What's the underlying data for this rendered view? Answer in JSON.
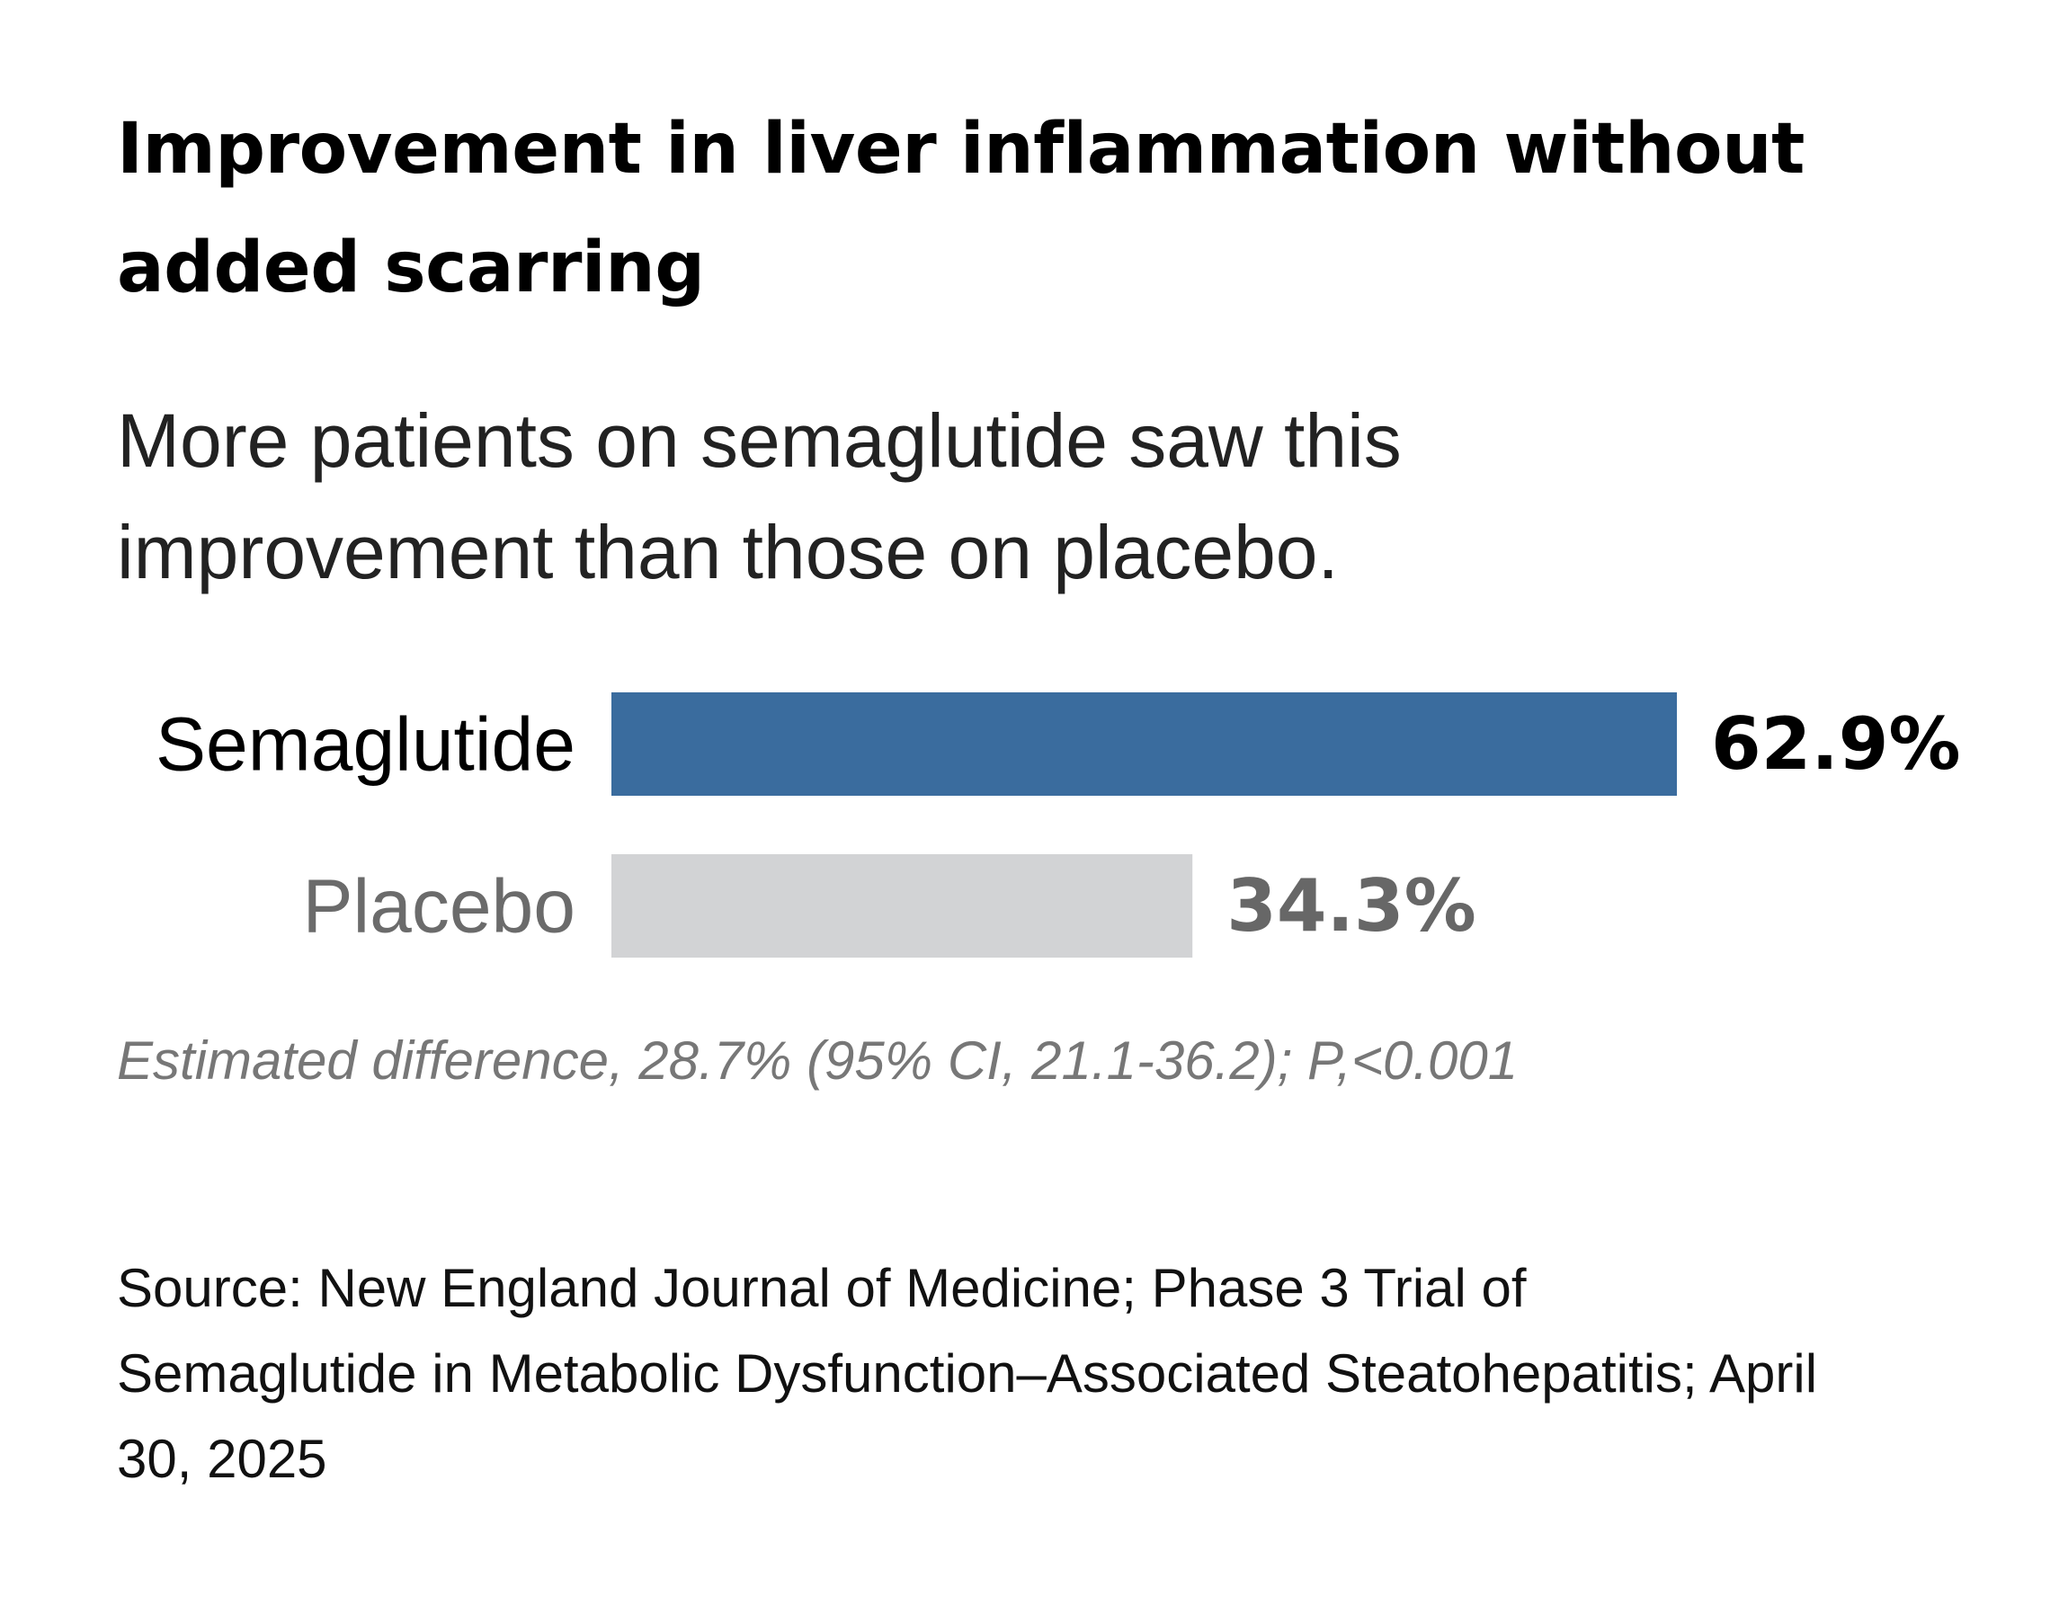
{
  "title": "Improvement in liver inflammation without added scarring",
  "subtitle": "More patients on semaglutide saw this improvement than those on placebo.",
  "note": "Estimated difference, 28.7% (95% CI, 21.1-36.2); P,<0.001",
  "source": "Source: New England Journal of Medicine; Phase 3 Trial of Semaglutide in Metabolic Dysfunction–Associated Steatohepatitis; April 30, 2025",
  "chart_data": {
    "type": "bar",
    "orientation": "horizontal",
    "categories": [
      "Semaglutide",
      "Placebo"
    ],
    "values": [
      62.9,
      34.3
    ],
    "value_labels": [
      "62.9%",
      "34.3%"
    ],
    "unit": "%",
    "xlim": [
      0,
      62.9
    ],
    "grid": false,
    "legend": "none",
    "bar_colors": [
      "#3a6c9e",
      "#d2d3d5"
    ],
    "label_colors": [
      "#000000",
      "#676767"
    ],
    "category_label_colors": [
      "#000000",
      "#6b6b6b"
    ]
  }
}
